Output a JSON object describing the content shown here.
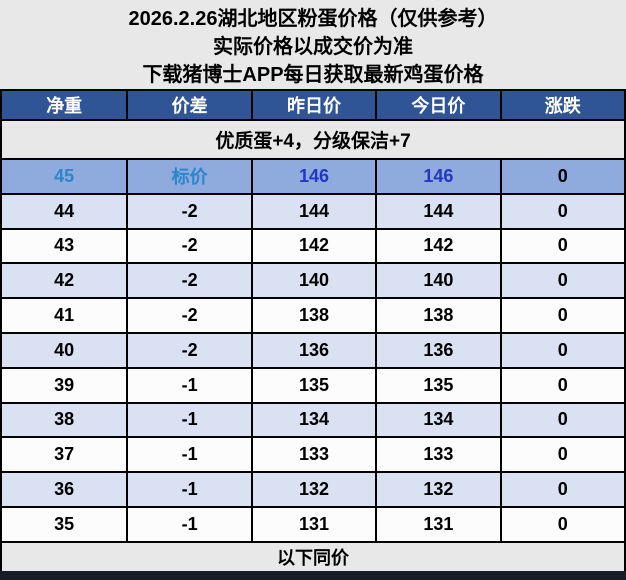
{
  "header": {
    "line1": "2026.2.26湖北地区粉蛋价格（仅供参考）",
    "line2": "实际价格以成交价为准",
    "line3": "下载猪博士APP每日获取最新鸡蛋价格"
  },
  "table": {
    "columns": [
      "净重",
      "价差",
      "昨日价",
      "今日价",
      "涨跌"
    ],
    "note": "优质蛋+4，分级保洁+7",
    "rows": [
      {
        "net_weight": "45",
        "diff": "标价",
        "yesterday": "146",
        "today": "146",
        "change": "0",
        "highlight": true
      },
      {
        "net_weight": "44",
        "diff": "-2",
        "yesterday": "144",
        "today": "144",
        "change": "0"
      },
      {
        "net_weight": "43",
        "diff": "-2",
        "yesterday": "142",
        "today": "142",
        "change": "0"
      },
      {
        "net_weight": "42",
        "diff": "-2",
        "yesterday": "140",
        "today": "140",
        "change": "0"
      },
      {
        "net_weight": "41",
        "diff": "-2",
        "yesterday": "138",
        "today": "138",
        "change": "0"
      },
      {
        "net_weight": "40",
        "diff": "-2",
        "yesterday": "136",
        "today": "136",
        "change": "0"
      },
      {
        "net_weight": "39",
        "diff": "-1",
        "yesterday": "135",
        "today": "135",
        "change": "0"
      },
      {
        "net_weight": "38",
        "diff": "-1",
        "yesterday": "134",
        "today": "134",
        "change": "0"
      },
      {
        "net_weight": "37",
        "diff": "-1",
        "yesterday": "133",
        "today": "133",
        "change": "0"
      },
      {
        "net_weight": "36",
        "diff": "-1",
        "yesterday": "132",
        "today": "132",
        "change": "0"
      },
      {
        "net_weight": "35",
        "diff": "-1",
        "yesterday": "131",
        "today": "131",
        "change": "0"
      }
    ],
    "footer": "以下同价"
  },
  "colors": {
    "page_background": "#e8e8e8",
    "header_blue": "#2F5597",
    "highlight_row": "#8FAADC",
    "highlight_label_text": "#2E86C9",
    "highlight_price_text": "#2238C4",
    "alt_row": "#D9E1F2",
    "plain_row": "#FCFCFC",
    "bottom_bar": "#171C28"
  }
}
